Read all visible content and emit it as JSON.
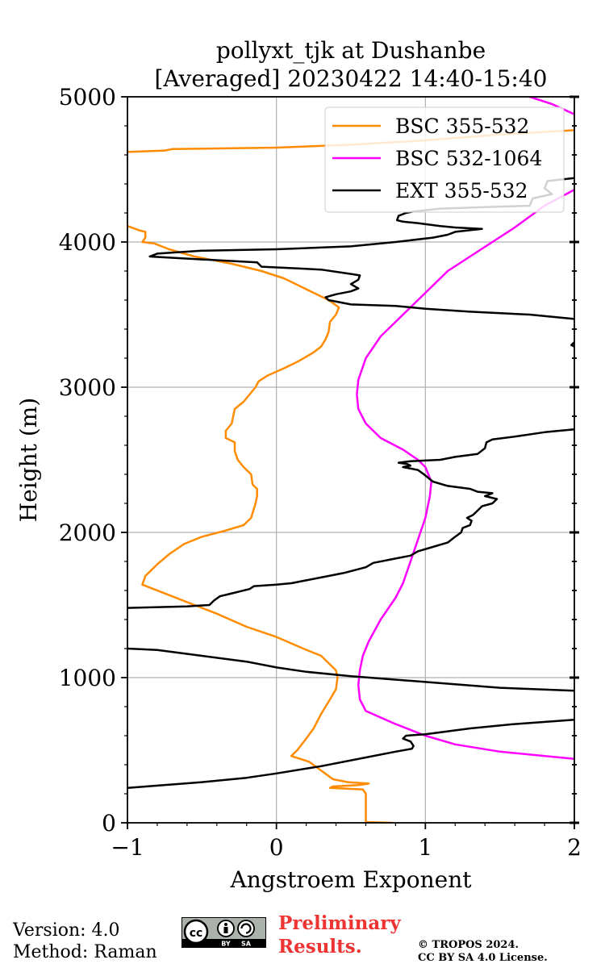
{
  "chart_data": {
    "type": "line",
    "title": [
      "pollyxt_tjk at Dushanbe",
      "[Averaged] 20230422 14:40-15:40"
    ],
    "xlabel": "Angstroem Exponent",
    "ylabel": "Height (m)",
    "xlim": [
      -1,
      2
    ],
    "ylim": [
      0,
      5000
    ],
    "xticks": [
      -1,
      0,
      1,
      2
    ],
    "xtick_labels": [
      "−1",
      "0",
      "1",
      "2"
    ],
    "yticks": [
      0,
      1000,
      2000,
      3000,
      4000,
      5000
    ],
    "ytick_labels": [
      "0",
      "1000",
      "2000",
      "3000",
      "4000",
      "5000"
    ],
    "grid": true,
    "legend_position": "top-right",
    "series": [
      {
        "name": "BSC 355-532",
        "color": "#ff8c00",
        "points": [
          [
            0.78,
            0
          ],
          [
            0.6,
            5
          ],
          [
            0.6,
            100
          ],
          [
            0.6,
            200
          ],
          [
            0.58,
            230
          ],
          [
            0.36,
            240
          ],
          [
            0.38,
            250
          ],
          [
            0.55,
            260
          ],
          [
            0.62,
            270
          ],
          [
            0.48,
            280
          ],
          [
            0.38,
            300
          ],
          [
            0.22,
            420
          ],
          [
            0.1,
            460
          ],
          [
            0.14,
            500
          ],
          [
            0.2,
            580
          ],
          [
            0.25,
            650
          ],
          [
            0.3,
            750
          ],
          [
            0.36,
            850
          ],
          [
            0.4,
            920
          ],
          [
            0.41,
            1000
          ],
          [
            0.4,
            1050
          ],
          [
            0.35,
            1100
          ],
          [
            0.3,
            1150
          ],
          [
            0.18,
            1200
          ],
          [
            0.0,
            1280
          ],
          [
            -0.2,
            1350
          ],
          [
            -0.4,
            1440
          ],
          [
            -0.6,
            1520
          ],
          [
            -0.75,
            1580
          ],
          [
            -0.9,
            1640
          ],
          [
            -0.88,
            1700
          ],
          [
            -0.8,
            1780
          ],
          [
            -0.72,
            1850
          ],
          [
            -0.62,
            1920
          ],
          [
            -0.5,
            1970
          ],
          [
            -0.35,
            2010
          ],
          [
            -0.22,
            2050
          ],
          [
            -0.17,
            2100
          ],
          [
            -0.14,
            2200
          ],
          [
            -0.13,
            2250
          ],
          [
            -0.13,
            2300
          ],
          [
            -0.16,
            2330
          ],
          [
            -0.17,
            2400
          ],
          [
            -0.22,
            2450
          ],
          [
            -0.26,
            2500
          ],
          [
            -0.28,
            2560
          ],
          [
            -0.28,
            2620
          ],
          [
            -0.34,
            2650
          ],
          [
            -0.34,
            2700
          ],
          [
            -0.3,
            2750
          ],
          [
            -0.29,
            2800
          ],
          [
            -0.28,
            2850
          ],
          [
            -0.22,
            2900
          ],
          [
            -0.18,
            2950
          ],
          [
            -0.14,
            3000
          ],
          [
            -0.12,
            3040
          ],
          [
            -0.06,
            3080
          ],
          [
            0.05,
            3130
          ],
          [
            0.15,
            3180
          ],
          [
            0.25,
            3240
          ],
          [
            0.3,
            3280
          ],
          [
            0.33,
            3330
          ],
          [
            0.35,
            3380
          ],
          [
            0.36,
            3450
          ],
          [
            0.4,
            3500
          ],
          [
            0.42,
            3550
          ],
          [
            0.35,
            3600
          ],
          [
            0.25,
            3650
          ],
          [
            0.15,
            3700
          ],
          [
            0.05,
            3750
          ],
          [
            -0.1,
            3800
          ],
          [
            -0.3,
            3850
          ],
          [
            -0.55,
            3900
          ],
          [
            -0.72,
            3950
          ],
          [
            -0.82,
            3990
          ],
          [
            -0.9,
            4000
          ],
          [
            -0.88,
            4030
          ],
          [
            -0.88,
            4070
          ],
          [
            -0.92,
            4080
          ],
          [
            -1.0,
            4110
          ]
        ]
      },
      {
        "name": "BSC 355-532",
        "color": "#ff8c00",
        "points": [
          [
            -1.0,
            4620
          ],
          [
            -0.75,
            4630
          ],
          [
            -0.7,
            4640
          ],
          [
            0.0,
            4650
          ],
          [
            0.5,
            4670
          ],
          [
            1.0,
            4700
          ],
          [
            1.5,
            4740
          ],
          [
            2.0,
            4770
          ]
        ]
      },
      {
        "name": "BSC 532-1064",
        "color": "#ff00ff",
        "points": [
          [
            2.0,
            440
          ],
          [
            1.5,
            490
          ],
          [
            1.2,
            540
          ],
          [
            1.0,
            600
          ],
          [
            0.8,
            680
          ],
          [
            0.6,
            770
          ],
          [
            0.56,
            850
          ],
          [
            0.55,
            950
          ],
          [
            0.56,
            1050
          ],
          [
            0.58,
            1150
          ],
          [
            0.62,
            1250
          ],
          [
            0.7,
            1400
          ],
          [
            0.8,
            1550
          ],
          [
            0.85,
            1650
          ],
          [
            0.9,
            1800
          ],
          [
            0.95,
            1950
          ],
          [
            1.0,
            2100
          ],
          [
            1.03,
            2250
          ],
          [
            1.04,
            2350
          ],
          [
            1.0,
            2450
          ],
          [
            0.95,
            2500
          ],
          [
            0.85,
            2570
          ],
          [
            0.7,
            2650
          ],
          [
            0.6,
            2750
          ],
          [
            0.55,
            2850
          ],
          [
            0.54,
            2950
          ],
          [
            0.55,
            3050
          ],
          [
            0.6,
            3200
          ],
          [
            0.7,
            3350
          ],
          [
            0.85,
            3500
          ],
          [
            0.95,
            3600
          ],
          [
            1.05,
            3700
          ],
          [
            1.15,
            3800
          ],
          [
            1.3,
            3900
          ],
          [
            1.45,
            4000
          ],
          [
            1.6,
            4100
          ],
          [
            1.8,
            4250
          ],
          [
            2.0,
            4360
          ]
        ]
      },
      {
        "name": "BSC 532-1064",
        "color": "#ff00ff",
        "points": [
          [
            1.7,
            5000
          ],
          [
            1.85,
            4950
          ],
          [
            2.0,
            4880
          ]
        ]
      },
      {
        "name": "EXT 355-532",
        "color": "#000000",
        "points": [
          [
            -1.0,
            240
          ],
          [
            -0.5,
            280
          ],
          [
            -0.2,
            310
          ],
          [
            0.0,
            340
          ],
          [
            0.3,
            390
          ],
          [
            0.6,
            450
          ],
          [
            0.8,
            490
          ],
          [
            0.91,
            510
          ],
          [
            0.92,
            530
          ],
          [
            0.9,
            560
          ],
          [
            0.85,
            580
          ],
          [
            0.87,
            600
          ],
          [
            1.0,
            610
          ],
          [
            1.3,
            650
          ],
          [
            1.6,
            680
          ],
          [
            2.0,
            710
          ]
        ]
      },
      {
        "name": "EXT 355-532",
        "color": "#000000",
        "points": [
          [
            2.0,
            910
          ],
          [
            1.5,
            930
          ],
          [
            1.0,
            970
          ],
          [
            0.5,
            1010
          ],
          [
            0.2,
            1040
          ],
          [
            0.0,
            1070
          ],
          [
            -0.2,
            1110
          ],
          [
            -0.5,
            1150
          ],
          [
            -0.8,
            1190
          ],
          [
            -1.0,
            1200
          ]
        ]
      },
      {
        "name": "EXT 355-532",
        "color": "#000000",
        "points": [
          [
            -1.0,
            1480
          ],
          [
            -0.6,
            1490
          ],
          [
            -0.45,
            1500
          ],
          [
            -0.42,
            1530
          ],
          [
            -0.38,
            1560
          ],
          [
            -0.3,
            1580
          ],
          [
            -0.18,
            1610
          ],
          [
            -0.15,
            1630
          ],
          [
            0.0,
            1640
          ],
          [
            0.1,
            1650
          ],
          [
            0.25,
            1680
          ],
          [
            0.45,
            1720
          ],
          [
            0.6,
            1760
          ],
          [
            0.65,
            1790
          ],
          [
            0.8,
            1820
          ],
          [
            0.9,
            1840
          ],
          [
            0.95,
            1870
          ],
          [
            1.05,
            1900
          ],
          [
            1.15,
            1930
          ],
          [
            1.2,
            1970
          ],
          [
            1.24,
            2000
          ],
          [
            1.25,
            2030
          ],
          [
            1.3,
            2050
          ],
          [
            1.31,
            2080
          ],
          [
            1.28,
            2100
          ],
          [
            1.32,
            2120
          ],
          [
            1.35,
            2150
          ],
          [
            1.38,
            2180
          ],
          [
            1.45,
            2200
          ],
          [
            1.48,
            2230
          ],
          [
            1.4,
            2250
          ],
          [
            1.45,
            2270
          ],
          [
            1.35,
            2280
          ],
          [
            1.3,
            2300
          ],
          [
            1.15,
            2320
          ],
          [
            1.05,
            2350
          ],
          [
            0.99,
            2400
          ],
          [
            0.95,
            2430
          ],
          [
            0.85,
            2450
          ],
          [
            0.9,
            2460
          ],
          [
            0.88,
            2470
          ],
          [
            0.82,
            2480
          ],
          [
            0.9,
            2490
          ],
          [
            1.1,
            2500
          ],
          [
            1.2,
            2520
          ],
          [
            1.35,
            2540
          ],
          [
            1.4,
            2580
          ],
          [
            1.41,
            2620
          ],
          [
            1.45,
            2640
          ],
          [
            1.6,
            2660
          ],
          [
            1.8,
            2690
          ],
          [
            2.0,
            2710
          ]
        ]
      },
      {
        "name": "EXT 355-532",
        "color": "#000000",
        "points": [
          [
            2.0,
            3280
          ],
          [
            1.98,
            3290
          ],
          [
            2.0,
            3310
          ]
        ]
      },
      {
        "name": "EXT 355-532",
        "color": "#000000",
        "points": [
          [
            2.0,
            3470
          ],
          [
            1.7,
            3500
          ],
          [
            1.3,
            3520
          ],
          [
            1.0,
            3540
          ],
          [
            0.8,
            3560
          ],
          [
            0.5,
            3570
          ],
          [
            0.35,
            3600
          ],
          [
            0.33,
            3620
          ],
          [
            0.4,
            3640
          ],
          [
            0.5,
            3660
          ],
          [
            0.55,
            3680
          ],
          [
            0.5,
            3710
          ],
          [
            0.55,
            3740
          ],
          [
            0.56,
            3770
          ],
          [
            0.5,
            3780
          ],
          [
            0.3,
            3810
          ],
          [
            0.1,
            3820
          ],
          [
            -0.1,
            3830
          ],
          [
            -0.13,
            3860
          ],
          [
            -0.5,
            3880
          ],
          [
            -0.85,
            3900
          ],
          [
            -0.8,
            3920
          ],
          [
            -0.5,
            3940
          ],
          [
            0.0,
            3950
          ],
          [
            0.5,
            3970
          ],
          [
            0.8,
            4000
          ],
          [
            1.05,
            4030
          ],
          [
            1.15,
            4050
          ],
          [
            1.2,
            4070
          ],
          [
            1.38,
            4090
          ],
          [
            1.2,
            4100
          ],
          [
            1.1,
            4110
          ],
          [
            0.95,
            4130
          ],
          [
            0.85,
            4140
          ],
          [
            0.81,
            4150
          ],
          [
            0.82,
            4180
          ],
          [
            0.87,
            4200
          ],
          [
            0.92,
            4210
          ],
          [
            1.1,
            4230
          ],
          [
            1.4,
            4240
          ],
          [
            1.7,
            4250
          ],
          [
            1.72,
            4300
          ],
          [
            1.85,
            4330
          ],
          [
            1.8,
            4370
          ],
          [
            1.82,
            4420
          ],
          [
            2.0,
            4440
          ]
        ]
      }
    ]
  },
  "legend": {
    "entries": [
      {
        "label": "BSC 355-532",
        "color": "#ff8c00"
      },
      {
        "label": "BSC 532-1064",
        "color": "#ff00ff"
      },
      {
        "label": "EXT 355-532",
        "color": "#000000"
      }
    ]
  },
  "footer": {
    "version": "Version: 4.0",
    "method": "Method: Raman",
    "preliminary_line1": "Preliminary",
    "preliminary_line2": "Results.",
    "copyright_line1": "© TROPOS 2024.",
    "copyright_line2": "CC BY SA 4.0 License."
  },
  "license_badge": {
    "cc": "cc",
    "by": "BY",
    "sa": "SA"
  }
}
